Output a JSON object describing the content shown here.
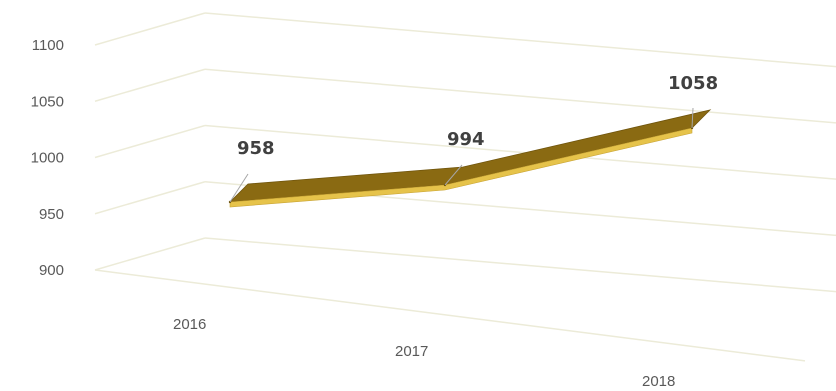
{
  "chart_data": {
    "type": "line",
    "categories": [
      "2016",
      "2017",
      "2018"
    ],
    "values": [
      958,
      994,
      1058
    ],
    "data_labels": [
      "958",
      "994",
      "1058"
    ],
    "y_ticks": [
      "900",
      "950",
      "1000",
      "1050",
      "1100"
    ],
    "ylim": [
      900,
      1100
    ],
    "grid": true,
    "legend": "none",
    "style": "3d",
    "colors": {
      "ribbon_top": "#8a6a12",
      "ribbon_front": "#e6c34a",
      "gridline": "#ecebd8",
      "text": "#595959",
      "label": "#404040"
    }
  }
}
